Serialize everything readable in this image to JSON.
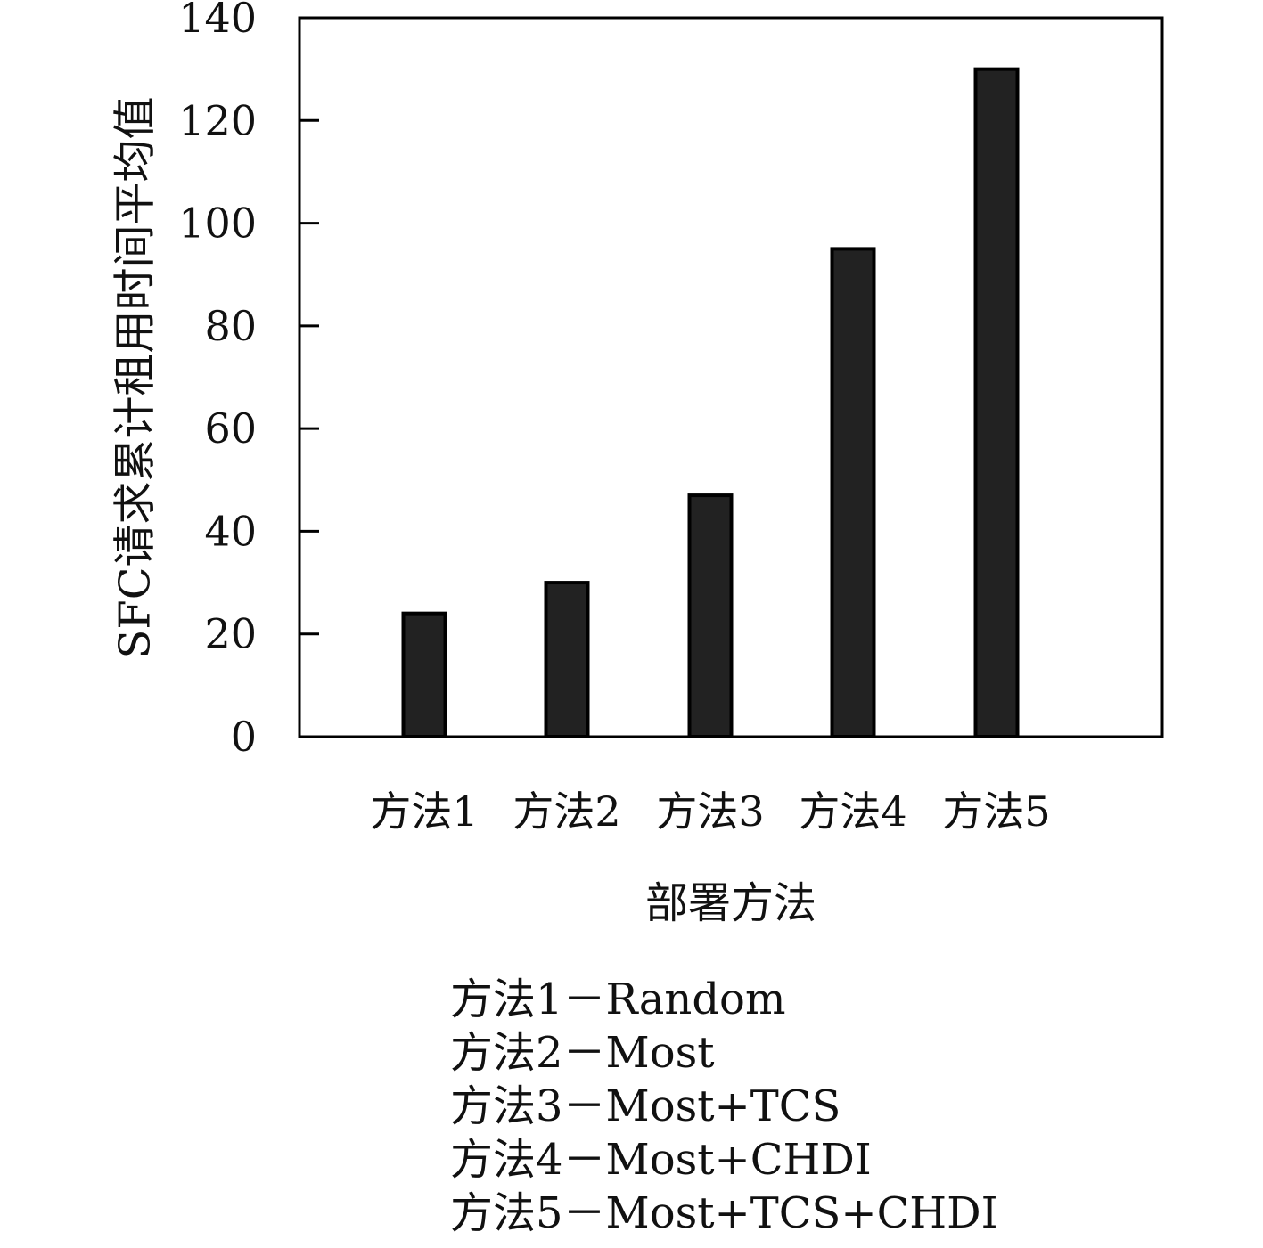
{
  "chart_data": {
    "type": "bar",
    "categories": [
      "方法1",
      "方法2",
      "方法3",
      "方法4",
      "方法5"
    ],
    "values": [
      24,
      30,
      47,
      95,
      130
    ],
    "xlabel": "部署方法",
    "ylabel": "SFC请求累计租用时间平均值",
    "ylim": [
      0,
      140
    ],
    "yticks": [
      0,
      20,
      40,
      60,
      80,
      100,
      120,
      140
    ],
    "grid": false,
    "bar_color": "#222222",
    "legend_position": "below",
    "legend_notes": [
      "方法1－Random",
      "方法2－Most",
      "方法3－Most+TCS",
      "方法4－Most+CHDI",
      "方法5－Most+TCS+CHDI"
    ]
  }
}
